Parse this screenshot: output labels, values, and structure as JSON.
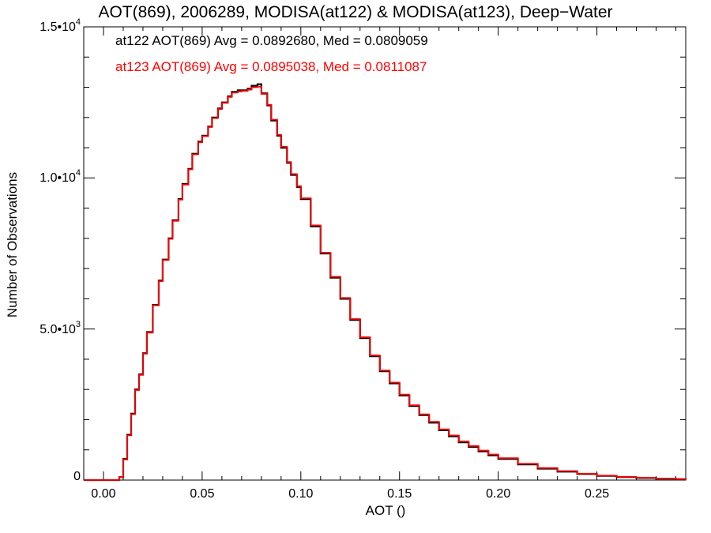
{
  "chart_data": {
    "type": "line",
    "title": "AOT(869), 2006289, MODISA(at122) & MODISA(at123), Deep−Water",
    "xlabel": "AOT ()",
    "ylabel": "Number of Observations",
    "xlim": [
      -0.01,
      0.295
    ],
    "ylim": [
      0,
      15000
    ],
    "x_ticks": [
      0.0,
      0.05,
      0.1,
      0.15,
      0.2,
      0.25
    ],
    "x_tick_labels": [
      "0.00",
      "0.05",
      "0.10",
      "0.15",
      "0.20",
      "0.25"
    ],
    "y_ticks": [
      0,
      5000,
      10000,
      15000
    ],
    "y_tick_labels": [
      {
        "base": "0",
        "exp": ""
      },
      {
        "base": "5.0•10",
        "exp": "3"
      },
      {
        "base": "1.0•10",
        "exp": "4"
      },
      {
        "base": "1.5•10",
        "exp": "4"
      }
    ],
    "grid": false,
    "x": [
      -0.01,
      0.005,
      0.008,
      0.01,
      0.012,
      0.014,
      0.016,
      0.018,
      0.02,
      0.022,
      0.025,
      0.028,
      0.03,
      0.033,
      0.035,
      0.038,
      0.04,
      0.043,
      0.045,
      0.048,
      0.05,
      0.053,
      0.055,
      0.058,
      0.06,
      0.063,
      0.065,
      0.068,
      0.07,
      0.073,
      0.075,
      0.078,
      0.08,
      0.083,
      0.085,
      0.088,
      0.09,
      0.093,
      0.095,
      0.098,
      0.1,
      0.105,
      0.11,
      0.115,
      0.12,
      0.125,
      0.13,
      0.135,
      0.14,
      0.145,
      0.15,
      0.155,
      0.16,
      0.165,
      0.17,
      0.175,
      0.18,
      0.185,
      0.19,
      0.195,
      0.2,
      0.21,
      0.22,
      0.23,
      0.24,
      0.25,
      0.26,
      0.27,
      0.28,
      0.29,
      0.295
    ],
    "series": [
      {
        "name": "at122 AOT(869) Avg = 0.0892680, Med = 0.0809059",
        "color": "#000000",
        "values": [
          0,
          0,
          100,
          700,
          1500,
          2200,
          3000,
          3500,
          4200,
          4900,
          5800,
          6600,
          7300,
          8000,
          8600,
          9300,
          9800,
          10300,
          10800,
          11200,
          11400,
          11700,
          12000,
          12300,
          12500,
          12700,
          12850,
          12900,
          12900,
          12950,
          13050,
          13100,
          12800,
          12400,
          11900,
          11400,
          11000,
          10500,
          10100,
          9700,
          9300,
          8400,
          7500,
          6700,
          6000,
          5300,
          4700,
          4100,
          3600,
          3200,
          2800,
          2450,
          2150,
          1900,
          1650,
          1450,
          1250,
          1100,
          950,
          820,
          700,
          520,
          380,
          280,
          200,
          140,
          100,
          70,
          50,
          30,
          20
        ]
      },
      {
        "name": "at123 AOT(869) Avg = 0.0895038, Med = 0.0811087",
        "color": "#ff0000",
        "values": [
          0,
          0,
          100,
          680,
          1480,
          2180,
          2980,
          3480,
          4180,
          4880,
          5780,
          6580,
          7280,
          7980,
          8580,
          9280,
          9780,
          10280,
          10780,
          11180,
          11380,
          11680,
          11980,
          12280,
          12480,
          12680,
          12820,
          12860,
          12880,
          12920,
          13000,
          13020,
          12780,
          12420,
          11930,
          11430,
          11030,
          10530,
          10130,
          9730,
          9330,
          8430,
          7530,
          6730,
          6030,
          5330,
          4730,
          4130,
          3630,
          3230,
          2830,
          2480,
          2180,
          1930,
          1680,
          1480,
          1280,
          1130,
          980,
          850,
          730,
          540,
          400,
          300,
          215,
          150,
          110,
          78,
          55,
          35,
          22
        ]
      }
    ]
  },
  "legend": {
    "line1": "at122 AOT(869) Avg = 0.0892680, Med = 0.0809059",
    "line2": "at123 AOT(869) Avg = 0.0895038, Med = 0.0811087"
  }
}
